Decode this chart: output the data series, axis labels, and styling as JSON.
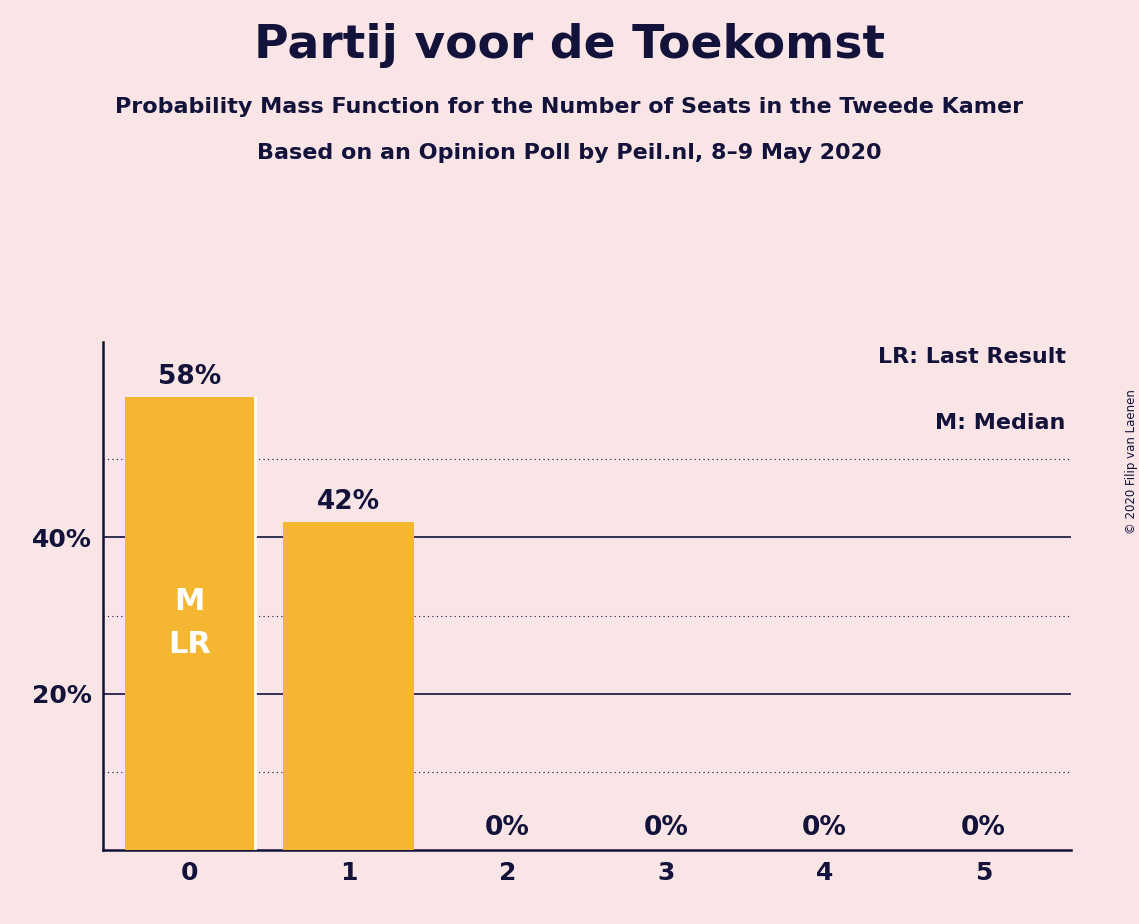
{
  "title": "Partij voor de Toekomst",
  "subtitle1": "Probability Mass Function for the Number of Seats in the Tweede Kamer",
  "subtitle2": "Based on an Opinion Poll by Peil.nl, 8–9 May 2020",
  "copyright": "© 2020 Filip van Laenen",
  "categories": [
    0,
    1,
    2,
    3,
    4,
    5
  ],
  "values": [
    0.58,
    0.42,
    0.0,
    0.0,
    0.0,
    0.0
  ],
  "bar_color": "#f5b731",
  "background_color": "#f9e4e6",
  "text_color": "#12123a",
  "bar_labels": [
    "58%",
    "42%",
    "0%",
    "0%",
    "0%",
    "0%"
  ],
  "bar_inside_labels": [
    [
      "M",
      "LR"
    ],
    null,
    null,
    null,
    null,
    null
  ],
  "legend_text": [
    "LR: Last Result",
    "M: Median"
  ],
  "ylim": [
    0,
    0.65
  ],
  "major_gridlines": [
    0.4,
    0.2
  ],
  "minor_gridlines": [
    0.5,
    0.3,
    0.1
  ],
  "title_fontsize": 34,
  "subtitle_fontsize": 16,
  "bar_label_fontsize": 19,
  "axis_label_fontsize": 18,
  "inside_label_fontsize": 22,
  "legend_fontsize": 16
}
